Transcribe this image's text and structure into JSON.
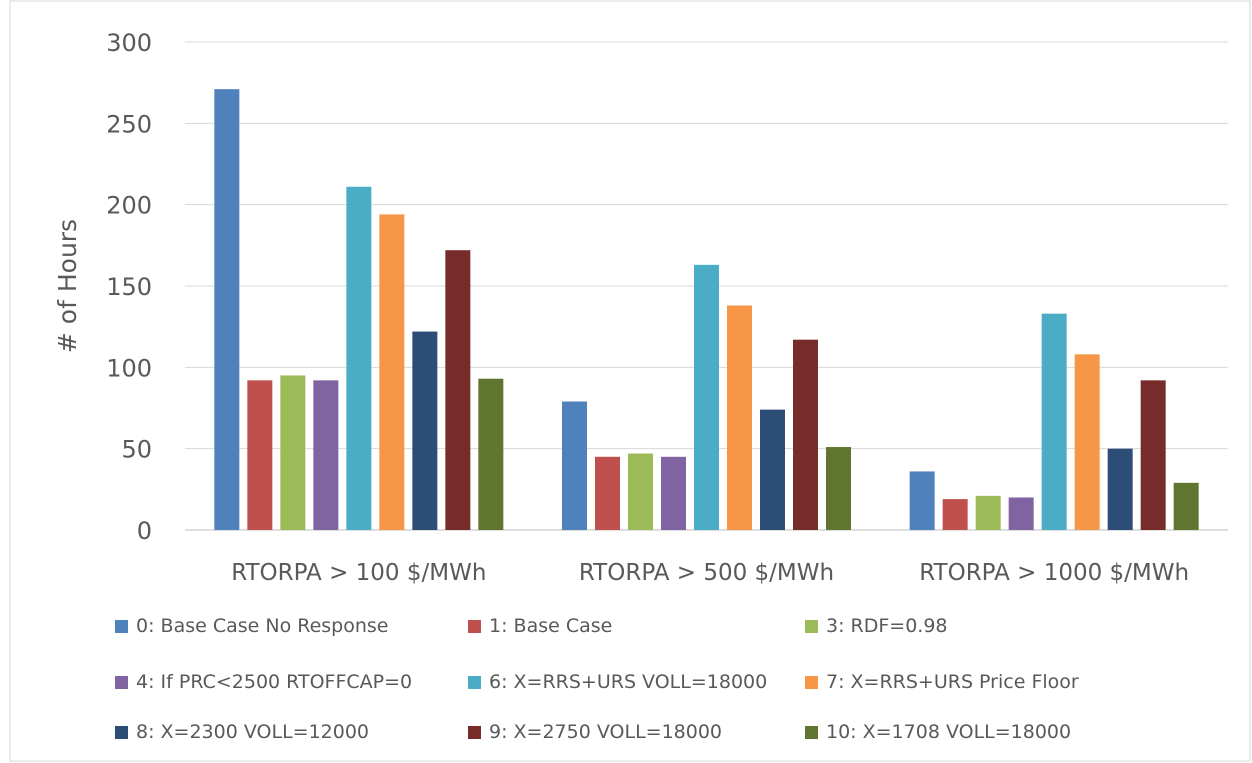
{
  "chart_data": {
    "type": "bar",
    "title": "",
    "xlabel": "",
    "ylabel": "# of Hours",
    "ylim": [
      0,
      300
    ],
    "yticks": [
      0,
      50,
      100,
      150,
      200,
      250,
      300
    ],
    "grid": true,
    "legend_position": "bottom",
    "categories": [
      "RTORPA > 100 $/MWh",
      "RTORPA > 500 $/MWh",
      "RTORPA > 1000 $/MWh"
    ],
    "series": [
      {
        "name": "0: Base Case No Response",
        "color": "#4F81BD",
        "values": [
          271,
          79,
          36
        ]
      },
      {
        "name": "1: Base Case",
        "color": "#C0504D",
        "values": [
          92,
          45,
          19
        ]
      },
      {
        "name": "3: RDF=0.98",
        "color": "#9BBB59",
        "values": [
          95,
          47,
          21
        ]
      },
      {
        "name": "4: If PRC<2500 RTOFFCAP=0",
        "color": "#8064A2",
        "values": [
          92,
          45,
          20
        ]
      },
      {
        "name": "6: X=RRS+URS VOLL=18000",
        "color": "#4BACC6",
        "values": [
          211,
          163,
          133
        ]
      },
      {
        "name": "7: X=RRS+URS Price Floor",
        "color": "#F79646",
        "values": [
          194,
          138,
          108
        ]
      },
      {
        "name": "8: X=2300 VOLL=12000",
        "color": "#2C4D75",
        "values": [
          122,
          74,
          50
        ]
      },
      {
        "name": "9: X=2750 VOLL=18000",
        "color": "#772C2A",
        "values": [
          172,
          117,
          92
        ]
      },
      {
        "name": "10: X=1708 VOLL=18000",
        "color": "#5F7530",
        "values": [
          93,
          51,
          29
        ]
      }
    ]
  }
}
